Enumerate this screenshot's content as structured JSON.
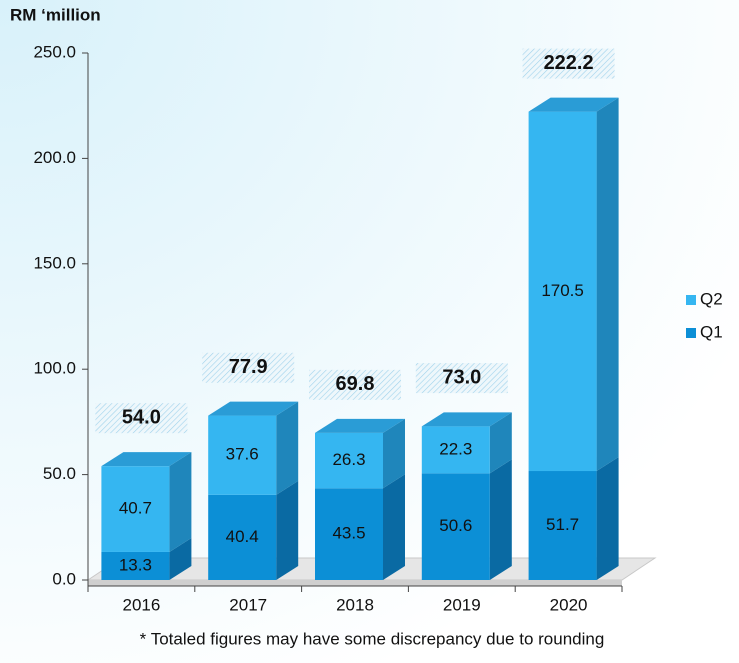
{
  "chart_data": {
    "type": "bar3d_stacked",
    "y_label": "RM ‘million",
    "footnote": "* Totaled figures may have some discrepancy due to rounding",
    "categories": [
      "2016",
      "2017",
      "2018",
      "2019",
      "2020"
    ],
    "series": [
      {
        "name": "Q1",
        "color": "#0c8fd6",
        "side": "#0a6aa3",
        "top": "#0a7dbd",
        "values": [
          13.3,
          40.4,
          43.5,
          50.6,
          51.7
        ]
      },
      {
        "name": "Q2",
        "color": "#35b6f1",
        "side": "#1f86bb",
        "top": "#2a9cd6",
        "values": [
          40.7,
          37.6,
          26.3,
          22.3,
          170.5
        ]
      }
    ],
    "totals": {
      "values": [
        54,
        77.9,
        69.8,
        73,
        222.2
      ],
      "value_labels": [
        "54.0",
        "77.9",
        "69.8",
        "73.0",
        "222.2"
      ]
    },
    "ylim": [
      0,
      250
    ],
    "yticks": [
      {
        "value": 0,
        "label": "0.0"
      },
      {
        "value": 50,
        "label": "50.0"
      },
      {
        "value": 100,
        "label": "100.0"
      },
      {
        "value": 150,
        "label": "150.0"
      },
      {
        "value": 200,
        "label": "200.0"
      },
      {
        "value": 250,
        "label": "250.0"
      }
    ],
    "legend": "right"
  }
}
